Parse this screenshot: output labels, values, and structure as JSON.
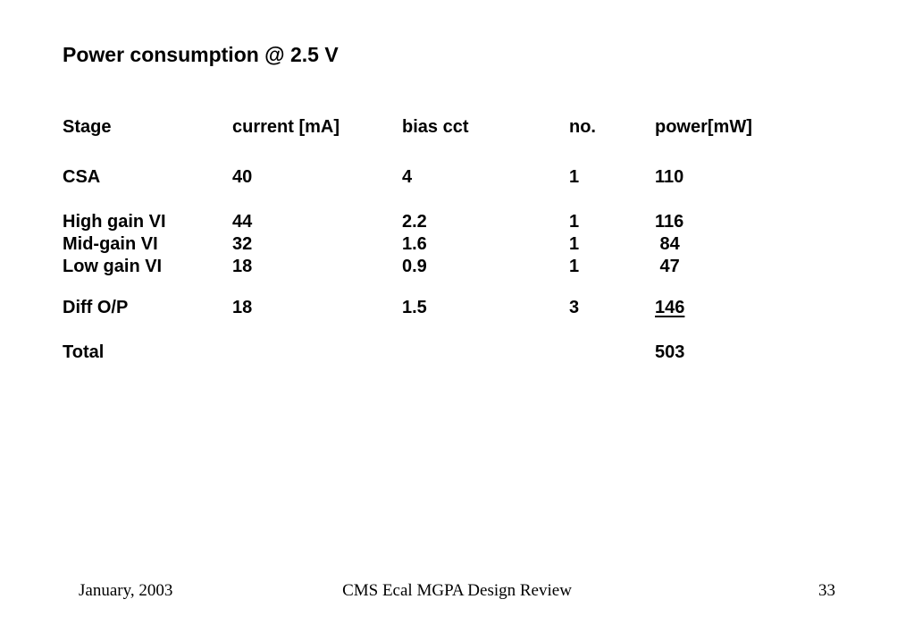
{
  "slide": {
    "title": "Power consumption @ 2.5 V",
    "background_color": "#ffffff",
    "text_color": "#000000"
  },
  "table": {
    "headers": {
      "stage": "Stage",
      "current": "current [mA]",
      "bias": "bias cct",
      "no": "no.",
      "power": "power[mW]"
    },
    "rows": [
      {
        "stage": "CSA",
        "current": "40",
        "bias": "4",
        "no": "1",
        "power": "110"
      },
      {
        "stage": "High gain VI",
        "current": "44",
        "bias": "2.2",
        "no": "1",
        "power": "116"
      },
      {
        "stage": "Mid-gain VI",
        "current": "32",
        "bias": "1.6",
        "no": "1",
        "power": " 84"
      },
      {
        "stage": "Low gain VI",
        "current": "18",
        "bias": "0.9",
        "no": "1",
        "power": " 47"
      },
      {
        "stage": "Diff O/P",
        "current": "18",
        "bias": "1.5",
        "no": "3",
        "power": "146"
      },
      {
        "stage": "Total",
        "power": "503"
      }
    ]
  },
  "chart_data": {
    "type": "table",
    "title": "Power consumption @ 2.5 V",
    "columns": [
      "Stage",
      "current [mA]",
      "bias cct",
      "no.",
      "power[mW]"
    ],
    "rows": [
      [
        "CSA",
        40,
        4,
        1,
        110
      ],
      [
        "High gain VI",
        44,
        2.2,
        1,
        116
      ],
      [
        "Mid-gain VI",
        32,
        1.6,
        1,
        84
      ],
      [
        "Low gain VI",
        18,
        0.9,
        1,
        47
      ],
      [
        "Diff O/P",
        18,
        1.5,
        3,
        146
      ],
      [
        "Total",
        null,
        null,
        null,
        503
      ]
    ]
  },
  "footer": {
    "date": "January, 2003",
    "center": "CMS Ecal MGPA Design Review",
    "page_number": "33"
  }
}
